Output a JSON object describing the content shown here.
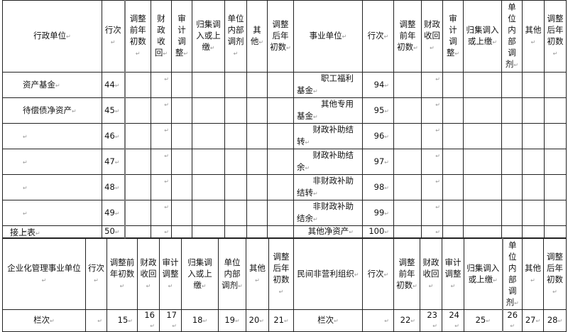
{
  "top_table": {
    "left_headers": [
      "行政单位",
      "行次",
      "调整前年初数",
      "财政收回",
      "审计调整",
      "归集调入或上缴",
      "单位内部调剂",
      "其他",
      "调整后年初数"
    ],
    "right_headers": [
      "事业单位",
      "行次",
      "调整前年初数",
      "财政收回",
      "审计调整",
      "归集调入或上缴",
      "单位内部调剂",
      "其他",
      "调整后年初数"
    ],
    "rows": [
      {
        "left_name": "资产基金",
        "left_line": "44",
        "right_name_1": "职工福利",
        "right_name_2": "基金",
        "right_line": "94"
      },
      {
        "left_name": "待偿债净资产",
        "left_line": "45",
        "right_name_1": "其他专用",
        "right_name_2": "基金",
        "right_line": "95"
      },
      {
        "left_name": "",
        "left_line": "46",
        "right_name_1": "财政补助结",
        "right_name_2": "转",
        "right_line": "96"
      },
      {
        "left_name": "",
        "left_line": "47",
        "right_name_1": "财政补助结",
        "right_name_2": "余",
        "right_line": "97"
      },
      {
        "left_name": "",
        "left_line": "48",
        "right_name_1": "非财政补助",
        "right_name_2": "结转",
        "right_line": "98"
      },
      {
        "left_name": "",
        "left_line": "49",
        "right_name_1": "非财政补助",
        "right_name_2": "结余",
        "right_line": "99"
      },
      {
        "left_name": "",
        "left_line": "50",
        "right_name_1": "其他净资产",
        "right_name_2": "",
        "right_line": "100"
      }
    ]
  },
  "continued_label": "接上表",
  "bottom_table": {
    "left_headers": [
      "企业化管理事业单位",
      "行次",
      "调整前年初数",
      "财政收回",
      "审计调整",
      "归集调入或上缴",
      "单位内部调剂",
      "其他",
      "调整后年初数"
    ],
    "right_headers": [
      "民间非营利组织",
      "行次",
      "调整前年初数",
      "财政收回",
      "审计调整",
      "归集调入或上缴",
      "单位内部调剂",
      "其他",
      "调整后年初数"
    ],
    "column_row": {
      "left_label": "栏次",
      "left_cols": [
        "15",
        "16",
        "17",
        "18",
        "19",
        "20",
        "21"
      ],
      "right_label": "栏次",
      "right_cols": [
        "22",
        "23",
        "24",
        "25",
        "26",
        "27",
        "28"
      ]
    }
  }
}
